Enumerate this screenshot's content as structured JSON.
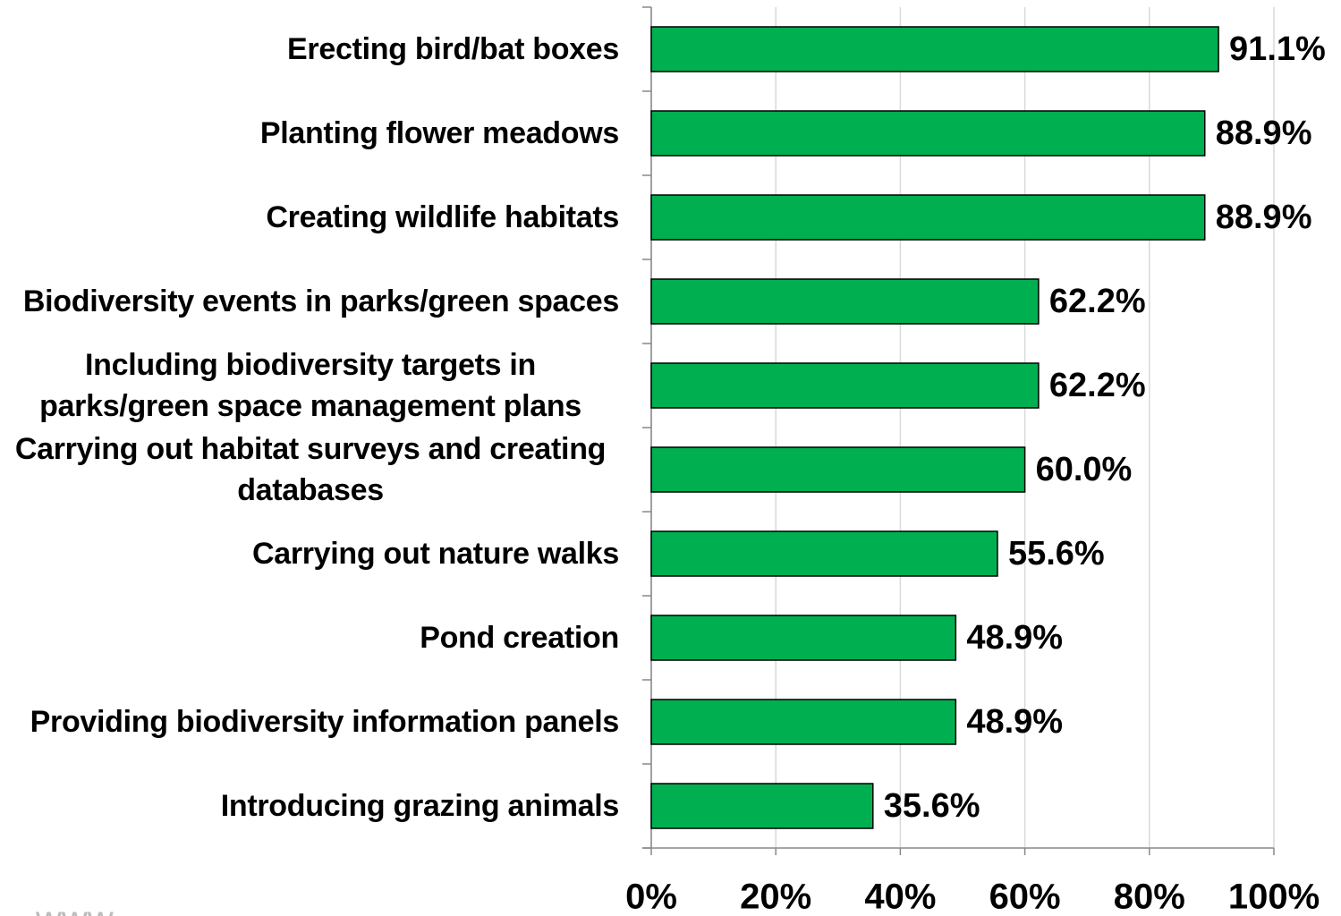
{
  "chart_data": {
    "type": "bar",
    "orientation": "horizontal",
    "categories": [
      "Erecting bird/bat boxes",
      "Planting flower meadows",
      "Creating wildlife habitats",
      "Biodiversity events in parks/green spaces",
      "Including biodiversity targets in parks/green space management plans",
      "Carrying out habitat surveys and creating databases",
      "Carrying out nature walks",
      "Pond creation",
      "Providing biodiversity information panels",
      "Introducing grazing animals"
    ],
    "values": [
      91.1,
      88.9,
      88.9,
      62.2,
      62.2,
      60.0,
      55.6,
      48.9,
      48.9,
      35.6
    ],
    "value_labels": [
      "91.1%",
      "88.9%",
      "88.9%",
      "62.2%",
      "62.2%",
      "60.0%",
      "55.6%",
      "48.9%",
      "48.9%",
      "35.6%"
    ],
    "color": "#00b050",
    "xlim": [
      0,
      100
    ],
    "xticks": [
      {
        "value": 0,
        "label": "0%"
      },
      {
        "value": 20,
        "label": "20%"
      },
      {
        "value": 40,
        "label": "40%"
      },
      {
        "value": 60,
        "label": "60%"
      },
      {
        "value": 80,
        "label": "80%"
      },
      {
        "value": 100,
        "label": "100%"
      }
    ],
    "grid": true,
    "watermark": "www"
  }
}
